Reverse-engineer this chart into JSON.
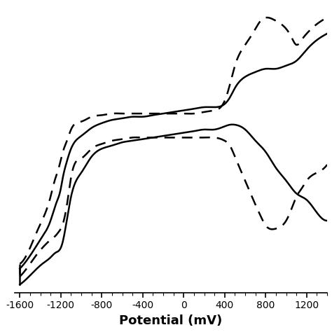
{
  "xlabel": "Potential (mV)",
  "xlim": [
    -1650,
    1400
  ],
  "ylim": [
    -1.0,
    0.8
  ],
  "xticks": [
    -1600,
    -1200,
    -800,
    -400,
    0,
    400,
    800,
    1200
  ],
  "background_color": "#ffffff",
  "line_color_solid": "#000000",
  "line_color_dashed": "#000000",
  "line_width": 1.8,
  "dash_pattern": [
    6,
    4
  ],
  "solid_x": [
    -1600,
    -1480,
    -1380,
    -1300,
    -1250,
    -1200,
    -1180,
    -1150,
    -1100,
    -1000,
    -900,
    -800,
    -700,
    -600,
    -500,
    -400,
    -300,
    -200,
    -100,
    0,
    100,
    200,
    300,
    400,
    450,
    500,
    600,
    700,
    800,
    900,
    1000,
    1100,
    1200,
    1300,
    1400
  ],
  "solid_y_upper": [
    -0.85,
    -0.75,
    -0.65,
    -0.55,
    -0.45,
    -0.35,
    -0.28,
    -0.2,
    -0.1,
    -0.02,
    0.03,
    0.06,
    0.08,
    0.09,
    0.1,
    0.1,
    0.11,
    0.12,
    0.13,
    0.14,
    0.15,
    0.16,
    0.16,
    0.18,
    0.22,
    0.28,
    0.35,
    0.38,
    0.4,
    0.4,
    0.42,
    0.45,
    0.52,
    0.58,
    0.62
  ],
  "solid_y_lower": [
    -0.95,
    -0.88,
    -0.82,
    -0.78,
    -0.75,
    -0.72,
    -0.68,
    -0.58,
    -0.4,
    -0.25,
    -0.15,
    -0.1,
    -0.08,
    -0.06,
    -0.05,
    -0.04,
    -0.03,
    -0.02,
    -0.01,
    0.0,
    0.01,
    0.02,
    0.02,
    0.04,
    0.05,
    0.05,
    0.02,
    -0.05,
    -0.12,
    -0.22,
    -0.3,
    -0.38,
    -0.42,
    -0.5,
    -0.55
  ],
  "dashed_x": [
    -1600,
    -1500,
    -1420,
    -1350,
    -1300,
    -1260,
    -1220,
    -1180,
    -1140,
    -1100,
    -1000,
    -900,
    -800,
    -700,
    -600,
    -500,
    -400,
    -300,
    -200,
    -100,
    0,
    100,
    200,
    300,
    400,
    450,
    500,
    600,
    700,
    750,
    800,
    900,
    1000,
    1050,
    1100,
    1150,
    1200,
    1300,
    1400
  ],
  "dashed_y_upper": [
    -0.82,
    -0.72,
    -0.6,
    -0.5,
    -0.4,
    -0.3,
    -0.22,
    -0.12,
    -0.05,
    0.02,
    0.07,
    0.1,
    0.11,
    0.12,
    0.12,
    0.12,
    0.12,
    0.12,
    0.12,
    0.12,
    0.12,
    0.12,
    0.13,
    0.14,
    0.2,
    0.3,
    0.42,
    0.55,
    0.65,
    0.7,
    0.72,
    0.7,
    0.65,
    0.6,
    0.55,
    0.58,
    0.62,
    0.68,
    0.72
  ],
  "dashed_y_lower": [
    -0.9,
    -0.82,
    -0.75,
    -0.7,
    -0.67,
    -0.65,
    -0.62,
    -0.57,
    -0.45,
    -0.28,
    -0.16,
    -0.1,
    -0.07,
    -0.05,
    -0.04,
    -0.03,
    -0.03,
    -0.03,
    -0.03,
    -0.03,
    -0.03,
    -0.03,
    -0.03,
    -0.03,
    -0.05,
    -0.08,
    -0.15,
    -0.3,
    -0.45,
    -0.52,
    -0.58,
    -0.6,
    -0.55,
    -0.48,
    -0.4,
    -0.35,
    -0.3,
    -0.25,
    -0.2
  ]
}
